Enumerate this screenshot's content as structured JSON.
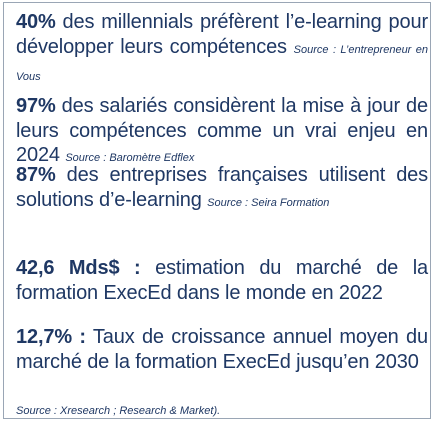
{
  "stats": [
    {
      "figure": "40%",
      "text": " des millennials préfèrent l’e-learning pour développer leurs compétences ",
      "source": "Source : L’entrepreneur en Vous"
    },
    {
      "figure": "97%",
      "text": " des salariés considèrent la mise à jour de leurs compétences comme un vrai enjeu en 2024 ",
      "source": "Source : Baromètre Edflex"
    },
    {
      "figure": "87%",
      "text": " des entreprises françaises utilisent des solutions d’e-learning ",
      "source": "Source : Seira Formation"
    },
    {
      "figure": "42,6 Mds$ :",
      "text": " estimation du marché de la formation ExecEd dans le monde en 2022",
      "source": ""
    },
    {
      "figure": "12,7% :",
      "text": " Taux de croissance annuel moyen du marché de la formation ExecEd jusqu’en 2030",
      "source": ""
    }
  ],
  "footer_source": "Source : Xresearch ; Research & Market).",
  "colors": {
    "text": "#1f3864",
    "border": "#9aa6b5",
    "background": "#ffffff"
  }
}
